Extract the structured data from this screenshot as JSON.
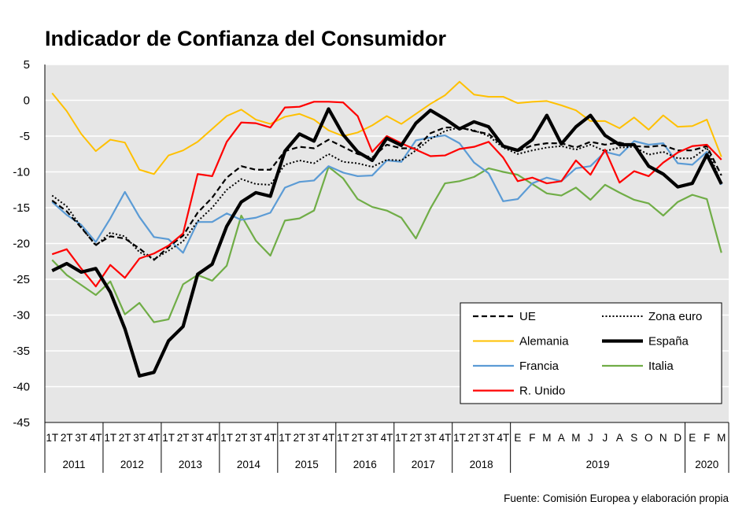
{
  "chart_data": {
    "type": "line",
    "title": "Indicador de Confianza del Consumidor",
    "source": "Fuente: Comisión Europea y elaboración propia",
    "ylim": [
      -45,
      5
    ],
    "yticks": [
      5,
      0,
      -5,
      -10,
      -15,
      -20,
      -25,
      -30,
      -35,
      -40,
      -45
    ],
    "grid": "horizontal",
    "legend_position": "bottom-right",
    "x_labels": [
      "1T",
      "2T",
      "3T",
      "4T",
      "1T",
      "2T",
      "3T",
      "4T",
      "1T",
      "2T",
      "3T",
      "4T",
      "1T",
      "2T",
      "3T",
      "4T",
      "1T",
      "2T",
      "3T",
      "4T",
      "1T",
      "2T",
      "3T",
      "4T",
      "1T",
      "2T",
      "3T",
      "4T",
      "1T",
      "2T",
      "3T",
      "4T",
      "E",
      "F",
      "M",
      "A",
      "M",
      "J",
      "J",
      "A",
      "S",
      "O",
      "N",
      "D",
      "E",
      "F",
      "M"
    ],
    "year_groups": [
      {
        "label": "2011",
        "count": 4
      },
      {
        "label": "2012",
        "count": 4
      },
      {
        "label": "2013",
        "count": 4
      },
      {
        "label": "2014",
        "count": 4
      },
      {
        "label": "2015",
        "count": 4
      },
      {
        "label": "2016",
        "count": 4
      },
      {
        "label": "2017",
        "count": 4
      },
      {
        "label": "2018",
        "count": 4
      },
      {
        "label": "2019",
        "count": 12
      },
      {
        "label": "2020",
        "count": 3
      }
    ],
    "series": [
      {
        "name": "UE",
        "color": "#000000",
        "style": "dashed",
        "width": 2.2,
        "values": [
          -14.0,
          -15.5,
          -17.8,
          -20.2,
          -19.0,
          -19.3,
          -20.7,
          -22.3,
          -20.5,
          -18.9,
          -15.7,
          -13.6,
          -10.8,
          -9.2,
          -9.7,
          -9.7,
          -7.1,
          -6.5,
          -6.7,
          -5.5,
          -6.5,
          -7.5,
          -8.0,
          -6.2,
          -6.7,
          -6.7,
          -4.6,
          -3.8,
          -3.8,
          -4.3,
          -4.7,
          -6.3,
          -7.1,
          -6.3,
          -6.0,
          -6.0,
          -6.6,
          -5.8,
          -6.2,
          -5.9,
          -6.4,
          -6.5,
          -6.3,
          -7.0,
          -7.0,
          -6.4,
          -10.5
        ]
      },
      {
        "name": "Zona euro",
        "color": "#000000",
        "style": "dotted",
        "width": 2.0,
        "values": [
          -13.3,
          -14.8,
          -17.7,
          -20.3,
          -18.5,
          -19.0,
          -21.2,
          -22.2,
          -21.0,
          -19.7,
          -16.9,
          -15.0,
          -12.5,
          -11.0,
          -11.7,
          -11.8,
          -9.0,
          -8.4,
          -8.8,
          -7.5,
          -8.6,
          -8.8,
          -9.3,
          -8.3,
          -8.4,
          -7.0,
          -5.4,
          -4.3,
          -3.8,
          -4.2,
          -5.0,
          -6.6,
          -7.5,
          -7.0,
          -6.6,
          -6.4,
          -6.9,
          -6.2,
          -7.1,
          -6.6,
          -6.5,
          -7.6,
          -7.2,
          -8.1,
          -8.1,
          -6.6,
          -11.6
        ]
      },
      {
        "name": "Alemania",
        "color": "#FFC000",
        "style": "solid",
        "width": 2.0,
        "values": [
          1.0,
          -1.5,
          -4.7,
          -7.1,
          -5.5,
          -5.9,
          -9.7,
          -10.3,
          -7.7,
          -7.0,
          -5.8,
          -4.0,
          -2.2,
          -1.3,
          -2.7,
          -3.3,
          -2.3,
          -1.9,
          -2.7,
          -4.2,
          -5.0,
          -4.5,
          -3.5,
          -2.2,
          -3.3,
          -1.9,
          -0.5,
          0.7,
          2.6,
          0.8,
          0.5,
          0.5,
          -0.4,
          -0.2,
          -0.1,
          -0.7,
          -1.4,
          -2.9,
          -2.9,
          -3.9,
          -2.4,
          -4.1,
          -2.1,
          -3.7,
          -3.6,
          -2.7,
          -7.9
        ]
      },
      {
        "name": "España",
        "color": "#000000",
        "style": "solid",
        "width": 4.2,
        "values": [
          -23.8,
          -22.8,
          -24.0,
          -23.5,
          -26.8,
          -31.9,
          -38.5,
          -38.0,
          -33.6,
          -31.6,
          -24.3,
          -22.9,
          -17.6,
          -14.2,
          -12.9,
          -13.4,
          -7.1,
          -4.7,
          -5.7,
          -1.2,
          -4.8,
          -7.2,
          -8.4,
          -5.3,
          -6.3,
          -3.2,
          -1.4,
          -2.6,
          -4.0,
          -3.0,
          -3.7,
          -6.4,
          -7.0,
          -5.5,
          -2.1,
          -6.1,
          -3.7,
          -2.1,
          -4.9,
          -6.2,
          -6.2,
          -9.2,
          -10.3,
          -12.1,
          -11.6,
          -7.6,
          -11.7
        ]
      },
      {
        "name": "Francia",
        "color": "#5B9BD5",
        "style": "solid",
        "width": 2.2,
        "values": [
          -14.2,
          -16.0,
          -17.4,
          -19.8,
          -16.5,
          -12.8,
          -16.3,
          -19.1,
          -19.4,
          -21.3,
          -17.0,
          -17.0,
          -15.8,
          -16.7,
          -16.4,
          -15.7,
          -12.2,
          -11.4,
          -11.2,
          -9.2,
          -10.1,
          -10.6,
          -10.5,
          -8.4,
          -8.6,
          -5.6,
          -5.2,
          -4.9,
          -6.0,
          -8.7,
          -10.2,
          -14.1,
          -13.8,
          -11.6,
          -10.8,
          -11.3,
          -9.5,
          -9.2,
          -7.2,
          -7.7,
          -5.7,
          -6.2,
          -6.0,
          -8.8,
          -9.0,
          -7.2,
          -11.8
        ]
      },
      {
        "name": "Italia",
        "color": "#70AD47",
        "style": "solid",
        "width": 2.2,
        "values": [
          -22.3,
          -24.4,
          -25.8,
          -27.2,
          -25.3,
          -29.9,
          -28.3,
          -31.0,
          -30.6,
          -25.7,
          -24.4,
          -25.2,
          -23.1,
          -16.1,
          -19.6,
          -21.7,
          -16.8,
          -16.5,
          -15.4,
          -9.3,
          -10.9,
          -13.8,
          -14.9,
          -15.4,
          -16.4,
          -19.3,
          -15.1,
          -11.6,
          -11.3,
          -10.7,
          -9.5,
          -10.0,
          -10.4,
          -11.7,
          -13.0,
          -13.3,
          -12.2,
          -13.9,
          -11.8,
          -12.9,
          -13.9,
          -14.4,
          -16.1,
          -14.2,
          -13.2,
          -13.8,
          -21.3
        ]
      },
      {
        "name": "R. Unido",
        "color": "#FF0000",
        "style": "solid",
        "width": 2.2,
        "values": [
          -21.5,
          -20.8,
          -23.5,
          -26.0,
          -23.0,
          -24.8,
          -22.1,
          -21.4,
          -20.3,
          -18.6,
          -10.3,
          -10.6,
          -5.8,
          -3.1,
          -3.2,
          -3.8,
          -1.0,
          -0.9,
          -0.2,
          -0.2,
          -0.3,
          -2.2,
          -7.2,
          -5.0,
          -6.0,
          -6.9,
          -7.8,
          -7.7,
          -6.8,
          -6.5,
          -5.8,
          -8.0,
          -11.3,
          -10.8,
          -11.6,
          -11.3,
          -8.4,
          -10.4,
          -6.9,
          -11.5,
          -9.9,
          -10.6,
          -8.7,
          -7.3,
          -6.4,
          -6.2,
          -8.3
        ]
      }
    ],
    "legend": {
      "rows": [
        [
          "UE",
          "Zona euro"
        ],
        [
          "Alemania",
          "España"
        ],
        [
          "Francia",
          "Italia"
        ],
        [
          "R. Unido"
        ]
      ]
    }
  }
}
